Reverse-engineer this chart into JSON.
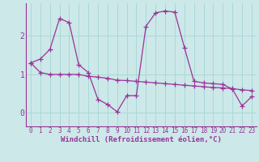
{
  "xlabel": "Windchill (Refroidissement éolien,°C)",
  "bg_color": "#cce8e8",
  "line_color": "#993399",
  "grid_color": "#aad8d8",
  "x": [
    0,
    1,
    2,
    3,
    4,
    5,
    6,
    7,
    8,
    9,
    10,
    11,
    12,
    13,
    14,
    15,
    16,
    17,
    18,
    19,
    20,
    21,
    22,
    23
  ],
  "line1": [
    1.3,
    1.4,
    1.65,
    2.45,
    2.35,
    1.25,
    1.05,
    0.35,
    0.22,
    0.03,
    0.45,
    0.45,
    2.25,
    2.6,
    2.65,
    2.62,
    1.7,
    0.82,
    0.78,
    0.76,
    0.74,
    0.62,
    0.18,
    0.42
  ],
  "line2": [
    1.3,
    1.05,
    1.0,
    1.0,
    1.0,
    1.0,
    0.95,
    0.93,
    0.9,
    0.85,
    0.84,
    0.82,
    0.8,
    0.78,
    0.76,
    0.74,
    0.72,
    0.7,
    0.68,
    0.66,
    0.65,
    0.63,
    0.6,
    0.58
  ],
  "xlim": [
    -0.5,
    23.5
  ],
  "ylim": [
    -0.35,
    2.85
  ],
  "yticks": [
    0,
    1,
    2
  ],
  "xticks": [
    0,
    1,
    2,
    3,
    4,
    5,
    6,
    7,
    8,
    9,
    10,
    11,
    12,
    13,
    14,
    15,
    16,
    17,
    18,
    19,
    20,
    21,
    22,
    23
  ],
  "tick_fontsize": 5.5,
  "xlabel_fontsize": 6.5,
  "ytick_fontsize": 7.0
}
